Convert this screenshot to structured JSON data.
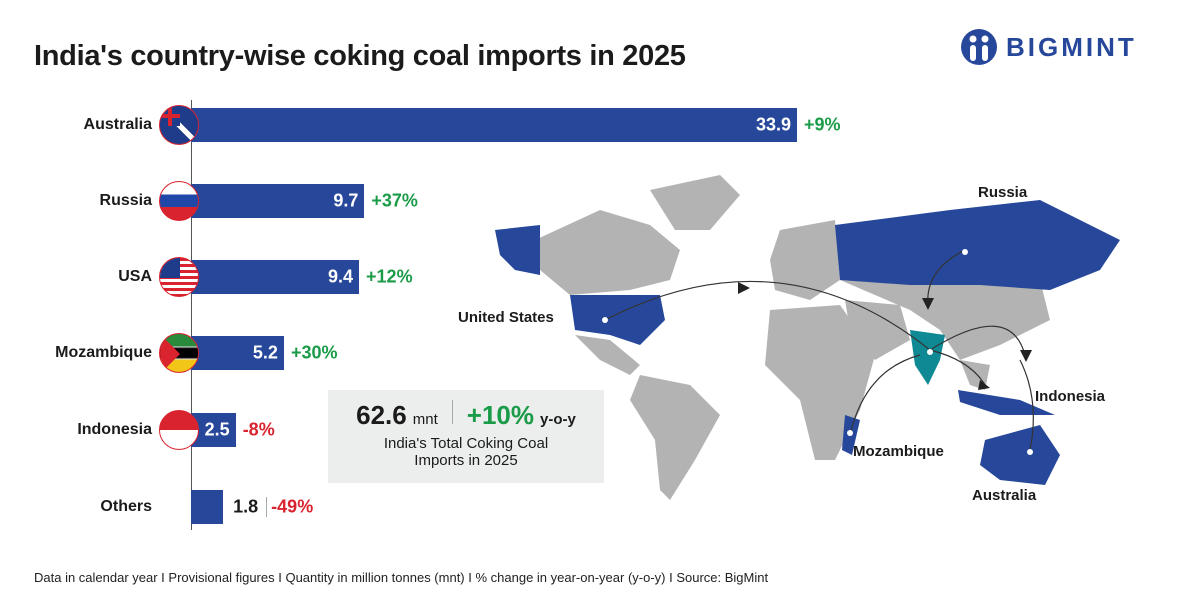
{
  "title": "India's country-wise coking coal imports in 2025",
  "logo": {
    "text": "BIGMINT",
    "color": "#27489a"
  },
  "chart_data": {
    "type": "bar",
    "orientation": "horizontal",
    "categories": [
      "Australia",
      "Russia",
      "USA",
      "Mozambique",
      "Indonesia",
      "Others"
    ],
    "values": [
      33.9,
      9.7,
      9.4,
      5.2,
      2.5,
      1.8
    ],
    "value_labels": [
      "33.9",
      "9.7",
      "9.4",
      "5.2",
      "2.5",
      "1.8"
    ],
    "yoy_change": [
      "+9%",
      "+37%",
      "+12%",
      "+30%",
      "-8%",
      "-49%"
    ],
    "unit": "mnt",
    "bar_color": "#27489a",
    "positive_color": "#1a9b48",
    "negative_color": "#d9232e"
  },
  "total": {
    "value": "62.6",
    "unit": "mnt",
    "change": "+10%",
    "change_suffix": "y-o-y",
    "caption_line1": "India's Total Coking Coal",
    "caption_line2": "Imports in 2025"
  },
  "map": {
    "labels": [
      "Russia",
      "United States",
      "Indonesia",
      "Mozambique",
      "Australia"
    ],
    "highlight_color": "#27489a",
    "india_color": "#0f8a94",
    "land_color": "#b3b3b3"
  },
  "footer": "Data in calendar year  I  Provisional figures  I  Quantity in million tonnes (mnt)  I  % change in year-on-year (y-o-y)  I  Source: BigMint"
}
